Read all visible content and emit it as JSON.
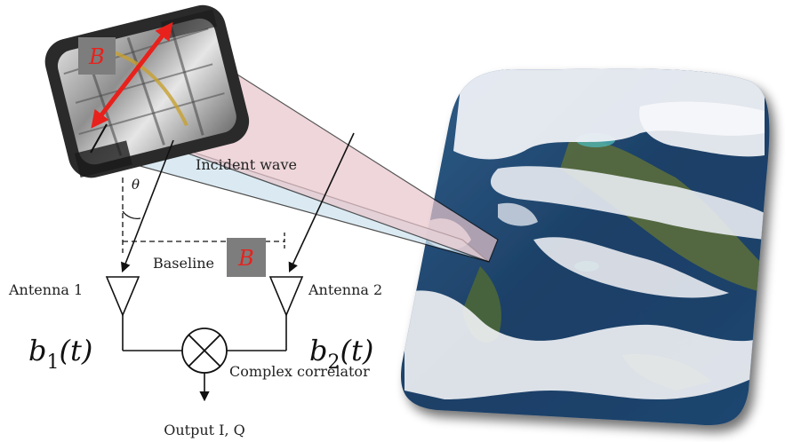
{
  "labels": {
    "incident_wave": "Incident wave",
    "theta": "θ",
    "baseline": "Baseline",
    "baseline_box": "B",
    "satellite_box": "B",
    "antenna_1": "Antenna 1",
    "antenna_2": "Antenna 2",
    "b1_base": "b",
    "b1_sub": "1",
    "b1_arg": "(t)",
    "b2_base": "b",
    "b2_sub": "2",
    "b2_arg": "(t)",
    "correlator": "Complex correlator",
    "output": "Output I, Q"
  },
  "colors": {
    "accent_red": "#e8211c",
    "box_gray": "#7d7d7d",
    "beam_pink": "#e9c6cc",
    "beam_blue": "#cfe3ee",
    "line": "#111111"
  }
}
